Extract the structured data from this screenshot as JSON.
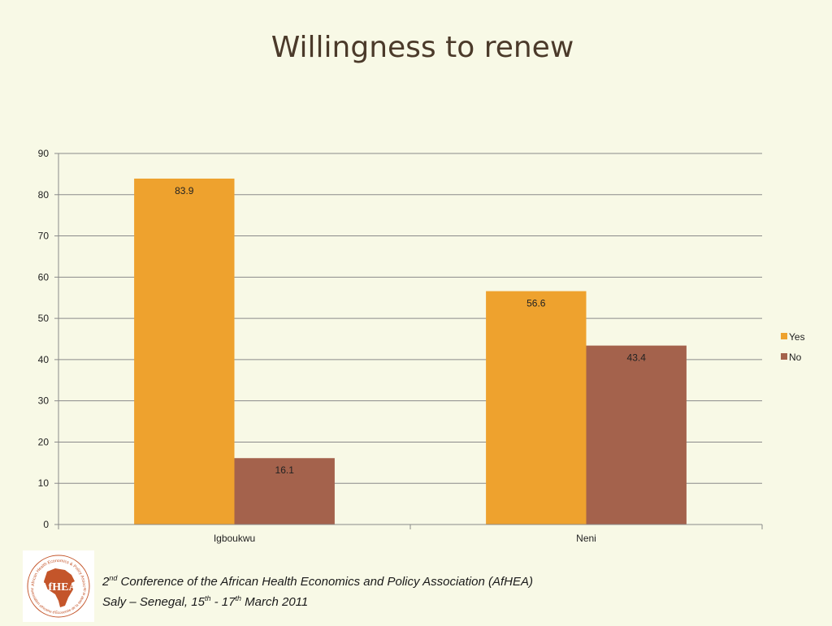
{
  "slide": {
    "title": "Willingness to renew"
  },
  "chart_data": {
    "type": "bar",
    "categories": [
      "Igboukwu",
      "Neni"
    ],
    "series": [
      {
        "name": "Yes",
        "values": [
          83.9,
          56.6
        ],
        "color": "#eea22e"
      },
      {
        "name": "No",
        "values": [
          16.1,
          43.4
        ],
        "color": "#a4624c"
      }
    ],
    "data_labels": [
      [
        "83.9",
        "56.6"
      ],
      [
        "16.1",
        "43.4"
      ]
    ],
    "y_ticks": [
      0,
      10,
      20,
      30,
      40,
      50,
      60,
      70,
      80,
      90
    ],
    "ylim": [
      0,
      90
    ],
    "grid": true,
    "legend_position": "right",
    "title": "",
    "xlabel": "",
    "ylabel": ""
  },
  "footer": {
    "line1_pre": "2",
    "line1_sup": "nd",
    "line1_post": " Conference of the African Health Economics and Policy Association (AfHEA)",
    "line2_pre": "Saly – Senegal, 15",
    "line2_sup1": "th",
    "line2_mid": " - 17",
    "line2_sup2": "th",
    "line2_post": " March 2011",
    "logo_text": "AfHEA",
    "logo_ring_text_top": "African Health Economics & Policy Association",
    "logo_ring_text_bottom": "Association africaine d'Économie de la santé et de Politique",
    "logo_ring_color": "#c4552a",
    "logo_map_color": "#c4552a"
  }
}
